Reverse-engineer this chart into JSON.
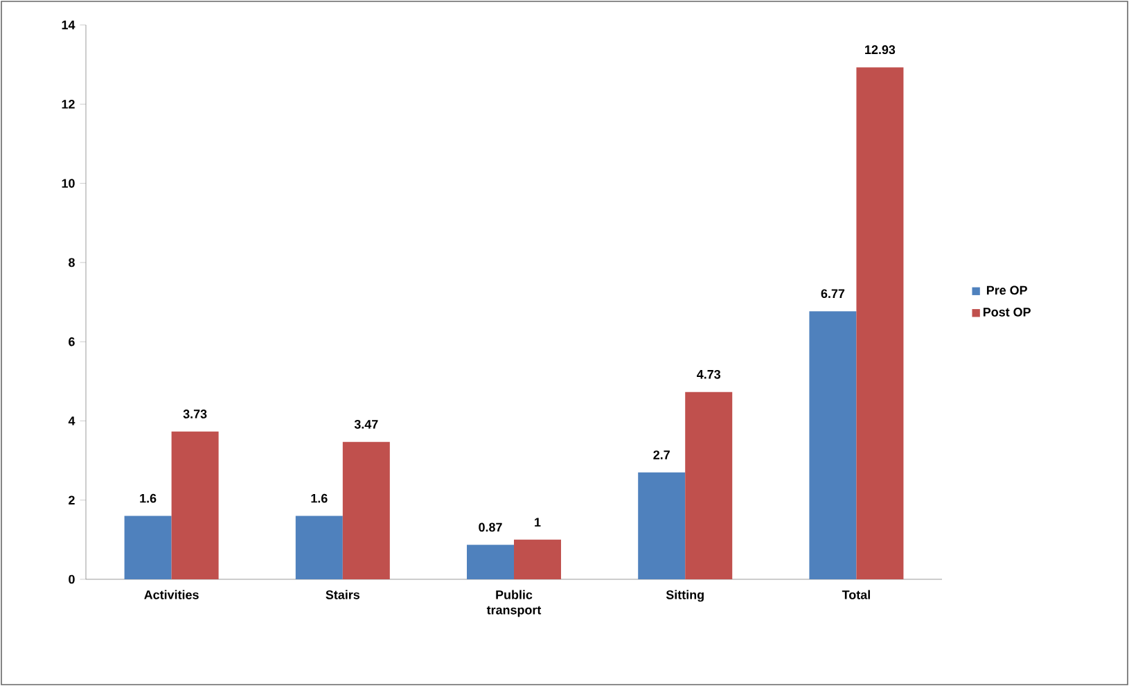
{
  "chart_data": {
    "type": "bar",
    "categories": [
      "Activities",
      "Stairs",
      "Public transport",
      "Sitting",
      "Total"
    ],
    "series": [
      {
        "name": "Pre OP",
        "color": "#4f81bd",
        "values": [
          1.6,
          1.6,
          0.87,
          2.7,
          6.77
        ]
      },
      {
        "name": "Post OP",
        "color": "#c0504d",
        "values": [
          3.73,
          3.47,
          1,
          4.73,
          12.93
        ]
      }
    ],
    "ylim": [
      0,
      14
    ],
    "yticks": [
      0,
      2,
      4,
      6,
      8,
      10,
      12,
      14
    ],
    "data_labels": true,
    "legend": "right",
    "grid": false
  }
}
